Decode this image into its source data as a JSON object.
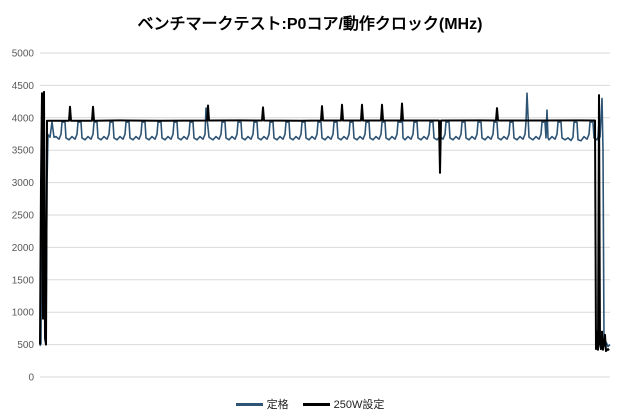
{
  "chart_data": {
    "type": "line",
    "title": "ベンチマークテスト:P0コア/動作クロック(MHz)",
    "xlabel": "",
    "ylabel": "",
    "ylim": [
      0,
      5000
    ],
    "yticks": [
      0,
      500,
      1000,
      1500,
      2000,
      2500,
      3000,
      3500,
      4000,
      4500,
      5000
    ],
    "x_samples": 570,
    "grid": "horizontal",
    "gridline_color": "#D9D9D9",
    "tick_label_color": "#595959",
    "legend_position": "bottom-center",
    "series": [
      {
        "name": "定格",
        "color": "#2D5474",
        "stroke_width": 1.6,
        "points": [
          [
            0,
            480
          ],
          [
            1,
            520
          ],
          [
            2,
            3905
          ],
          [
            3,
            4250
          ],
          [
            4,
            3800
          ],
          [
            5,
            700
          ],
          [
            6,
            520
          ],
          [
            7,
            3000
          ],
          [
            8,
            3740
          ],
          [
            10,
            3700
          ],
          [
            12,
            3935
          ],
          [
            14,
            3700
          ],
          [
            16,
            3710
          ],
          [
            19,
            3670
          ],
          [
            21,
            3745
          ],
          [
            22,
            3935
          ],
          [
            25,
            3932
          ],
          [
            26,
            3690
          ],
          [
            29,
            3660
          ],
          [
            32,
            3710
          ],
          [
            35,
            3670
          ],
          [
            37,
            3745
          ],
          [
            38,
            3935
          ],
          [
            41,
            3932
          ],
          [
            42,
            3690
          ],
          [
            45,
            3660
          ],
          [
            48,
            3710
          ],
          [
            51,
            3670
          ],
          [
            53,
            3745
          ],
          [
            54,
            3935
          ],
          [
            57,
            3932
          ],
          [
            58,
            3690
          ],
          [
            61,
            3660
          ],
          [
            64,
            3710
          ],
          [
            67,
            3670
          ],
          [
            69,
            3745
          ],
          [
            70,
            3935
          ],
          [
            73,
            3932
          ],
          [
            74,
            3690
          ],
          [
            77,
            3660
          ],
          [
            80,
            3710
          ],
          [
            83,
            3670
          ],
          [
            85,
            3745
          ],
          [
            86,
            3935
          ],
          [
            89,
            3932
          ],
          [
            90,
            3690
          ],
          [
            93,
            3660
          ],
          [
            96,
            3710
          ],
          [
            99,
            3670
          ],
          [
            101,
            3745
          ],
          [
            102,
            3935
          ],
          [
            105,
            3932
          ],
          [
            106,
            3690
          ],
          [
            109,
            3660
          ],
          [
            112,
            3710
          ],
          [
            115,
            3670
          ],
          [
            117,
            3745
          ],
          [
            118,
            3935
          ],
          [
            121,
            3932
          ],
          [
            122,
            3690
          ],
          [
            125,
            3660
          ],
          [
            128,
            3710
          ],
          [
            131,
            3670
          ],
          [
            133,
            3745
          ],
          [
            134,
            3935
          ],
          [
            137,
            3932
          ],
          [
            138,
            3690
          ],
          [
            141,
            3660
          ],
          [
            144,
            3710
          ],
          [
            147,
            3670
          ],
          [
            149,
            3745
          ],
          [
            150,
            3935
          ],
          [
            153,
            3932
          ],
          [
            154,
            3690
          ],
          [
            157,
            3660
          ],
          [
            160,
            3710
          ],
          [
            163,
            3670
          ],
          [
            165,
            3745
          ],
          [
            166,
            4150
          ],
          [
            169,
            3700
          ],
          [
            170,
            3690
          ],
          [
            173,
            3660
          ],
          [
            176,
            3710
          ],
          [
            179,
            3670
          ],
          [
            181,
            3745
          ],
          [
            182,
            3935
          ],
          [
            185,
            3932
          ],
          [
            186,
            3690
          ],
          [
            189,
            3660
          ],
          [
            192,
            3710
          ],
          [
            195,
            3670
          ],
          [
            197,
            3745
          ],
          [
            198,
            3935
          ],
          [
            201,
            3932
          ],
          [
            202,
            3690
          ],
          [
            205,
            3660
          ],
          [
            208,
            3710
          ],
          [
            211,
            3670
          ],
          [
            213,
            3745
          ],
          [
            214,
            3935
          ],
          [
            217,
            3932
          ],
          [
            218,
            3690
          ],
          [
            221,
            3660
          ],
          [
            224,
            3710
          ],
          [
            227,
            3670
          ],
          [
            229,
            3745
          ],
          [
            230,
            3935
          ],
          [
            233,
            3932
          ],
          [
            234,
            3690
          ],
          [
            237,
            3660
          ],
          [
            240,
            3710
          ],
          [
            243,
            3670
          ],
          [
            245,
            3745
          ],
          [
            246,
            3935
          ],
          [
            249,
            3932
          ],
          [
            250,
            3690
          ],
          [
            253,
            3660
          ],
          [
            256,
            3710
          ],
          [
            259,
            3670
          ],
          [
            261,
            3745
          ],
          [
            262,
            3935
          ],
          [
            265,
            3932
          ],
          [
            266,
            3690
          ],
          [
            269,
            3660
          ],
          [
            272,
            3710
          ],
          [
            275,
            3670
          ],
          [
            277,
            3745
          ],
          [
            278,
            3935
          ],
          [
            281,
            3932
          ],
          [
            282,
            3690
          ],
          [
            285,
            3660
          ],
          [
            288,
            3710
          ],
          [
            291,
            3670
          ],
          [
            293,
            3745
          ],
          [
            294,
            3935
          ],
          [
            297,
            3932
          ],
          [
            298,
            3690
          ],
          [
            301,
            3660
          ],
          [
            304,
            3710
          ],
          [
            307,
            3670
          ],
          [
            309,
            3745
          ],
          [
            310,
            3935
          ],
          [
            313,
            3932
          ],
          [
            314,
            3690
          ],
          [
            317,
            3660
          ],
          [
            320,
            3710
          ],
          [
            323,
            3670
          ],
          [
            325,
            3745
          ],
          [
            326,
            3935
          ],
          [
            329,
            3932
          ],
          [
            330,
            3690
          ],
          [
            333,
            3660
          ],
          [
            336,
            3710
          ],
          [
            339,
            3670
          ],
          [
            341,
            3745
          ],
          [
            342,
            3935
          ],
          [
            345,
            3932
          ],
          [
            346,
            3690
          ],
          [
            349,
            3660
          ],
          [
            352,
            3710
          ],
          [
            355,
            3670
          ],
          [
            357,
            3745
          ],
          [
            358,
            3935
          ],
          [
            361,
            3932
          ],
          [
            362,
            4150
          ],
          [
            363,
            3690
          ],
          [
            365,
            3660
          ],
          [
            368,
            3710
          ],
          [
            371,
            3670
          ],
          [
            373,
            3745
          ],
          [
            374,
            3935
          ],
          [
            377,
            3932
          ],
          [
            378,
            3690
          ],
          [
            381,
            3660
          ],
          [
            384,
            3710
          ],
          [
            387,
            3670
          ],
          [
            389,
            3745
          ],
          [
            390,
            3935
          ],
          [
            393,
            3932
          ],
          [
            394,
            3690
          ],
          [
            397,
            3660
          ],
          [
            400,
            3710
          ],
          [
            403,
            3670
          ],
          [
            405,
            3745
          ],
          [
            406,
            3935
          ],
          [
            409,
            3932
          ],
          [
            410,
            3690
          ],
          [
            413,
            3660
          ],
          [
            416,
            3710
          ],
          [
            419,
            3670
          ],
          [
            421,
            3745
          ],
          [
            422,
            3935
          ],
          [
            425,
            3932
          ],
          [
            426,
            3690
          ],
          [
            429,
            3660
          ],
          [
            432,
            3710
          ],
          [
            435,
            3670
          ],
          [
            437,
            3745
          ],
          [
            438,
            3935
          ],
          [
            441,
            3932
          ],
          [
            442,
            3690
          ],
          [
            445,
            3660
          ],
          [
            448,
            3710
          ],
          [
            451,
            3670
          ],
          [
            453,
            3745
          ],
          [
            454,
            3935
          ],
          [
            457,
            3932
          ],
          [
            458,
            3690
          ],
          [
            461,
            3660
          ],
          [
            464,
            3710
          ],
          [
            467,
            3670
          ],
          [
            469,
            3745
          ],
          [
            470,
            3935
          ],
          [
            473,
            3932
          ],
          [
            474,
            3690
          ],
          [
            477,
            3660
          ],
          [
            480,
            3710
          ],
          [
            483,
            3670
          ],
          [
            485,
            3745
          ],
          [
            486,
            3935
          ],
          [
            487,
            4380
          ],
          [
            489,
            3700
          ],
          [
            490,
            3690
          ],
          [
            493,
            3660
          ],
          [
            496,
            3710
          ],
          [
            499,
            3670
          ],
          [
            501,
            3745
          ],
          [
            502,
            3935
          ],
          [
            505,
            3932
          ],
          [
            506,
            3690
          ],
          [
            507,
            4120
          ],
          [
            508,
            3690
          ],
          [
            509,
            3660
          ],
          [
            512,
            3710
          ],
          [
            515,
            3670
          ],
          [
            517,
            3745
          ],
          [
            518,
            3935
          ],
          [
            521,
            3932
          ],
          [
            522,
            3690
          ],
          [
            525,
            3660
          ],
          [
            528,
            3690
          ],
          [
            531,
            3650
          ],
          [
            533,
            3700
          ],
          [
            534,
            3935
          ],
          [
            537,
            3930
          ],
          [
            538,
            3660
          ],
          [
            541,
            3645
          ],
          [
            544,
            3710
          ],
          [
            547,
            3670
          ],
          [
            549,
            3745
          ],
          [
            550,
            3935
          ],
          [
            553,
            3932
          ],
          [
            554,
            3690
          ],
          [
            557,
            3660
          ],
          [
            558,
            3700
          ],
          [
            559,
            3935
          ],
          [
            560,
            3700
          ],
          [
            562,
            4300
          ],
          [
            563,
            3500
          ],
          [
            564,
            560
          ],
          [
            565,
            480
          ],
          [
            566,
            540
          ],
          [
            568,
            470
          ],
          [
            570,
            500
          ]
        ]
      },
      {
        "name": "250W設定",
        "color": "#000000",
        "stroke_width": 2,
        "points": [
          [
            0,
            500
          ],
          [
            1,
            3000
          ],
          [
            2,
            4380
          ],
          [
            3,
            900
          ],
          [
            4,
            4400
          ],
          [
            5,
            600
          ],
          [
            6,
            500
          ],
          [
            7,
            3955
          ],
          [
            20,
            3955
          ],
          [
            29,
            3955
          ],
          [
            30,
            4170
          ],
          [
            31,
            3955
          ],
          [
            52,
            3955
          ],
          [
            53,
            4170
          ],
          [
            54,
            3955
          ],
          [
            80,
            3960
          ],
          [
            120,
            3955
          ],
          [
            167,
            3958
          ],
          [
            168,
            4190
          ],
          [
            169,
            3958
          ],
          [
            200,
            3960
          ],
          [
            222,
            3958
          ],
          [
            223,
            4160
          ],
          [
            224,
            3958
          ],
          [
            260,
            3955
          ],
          [
            281,
            3958
          ],
          [
            282,
            4180
          ],
          [
            283,
            3958
          ],
          [
            301,
            3958
          ],
          [
            302,
            4200
          ],
          [
            303,
            3958
          ],
          [
            321,
            3958
          ],
          [
            322,
            4200
          ],
          [
            323,
            3958
          ],
          [
            341,
            3958
          ],
          [
            342,
            4200
          ],
          [
            343,
            3958
          ],
          [
            361,
            3958
          ],
          [
            362,
            4220
          ],
          [
            363,
            3958
          ],
          [
            399,
            3958
          ],
          [
            400,
            3150
          ],
          [
            401,
            3958
          ],
          [
            440,
            3960
          ],
          [
            456,
            3958
          ],
          [
            457,
            4150
          ],
          [
            458,
            3958
          ],
          [
            500,
            3958
          ],
          [
            540,
            3960
          ],
          [
            555,
            3958
          ],
          [
            556,
            430
          ],
          [
            557,
            700
          ],
          [
            558,
            420
          ],
          [
            559,
            4350
          ],
          [
            560,
            500
          ],
          [
            561,
            430
          ],
          [
            562,
            700
          ],
          [
            563,
            420
          ],
          [
            565,
            650
          ],
          [
            566,
            400
          ],
          [
            568,
            430
          ],
          [
            569,
            410
          ]
        ]
      }
    ]
  }
}
